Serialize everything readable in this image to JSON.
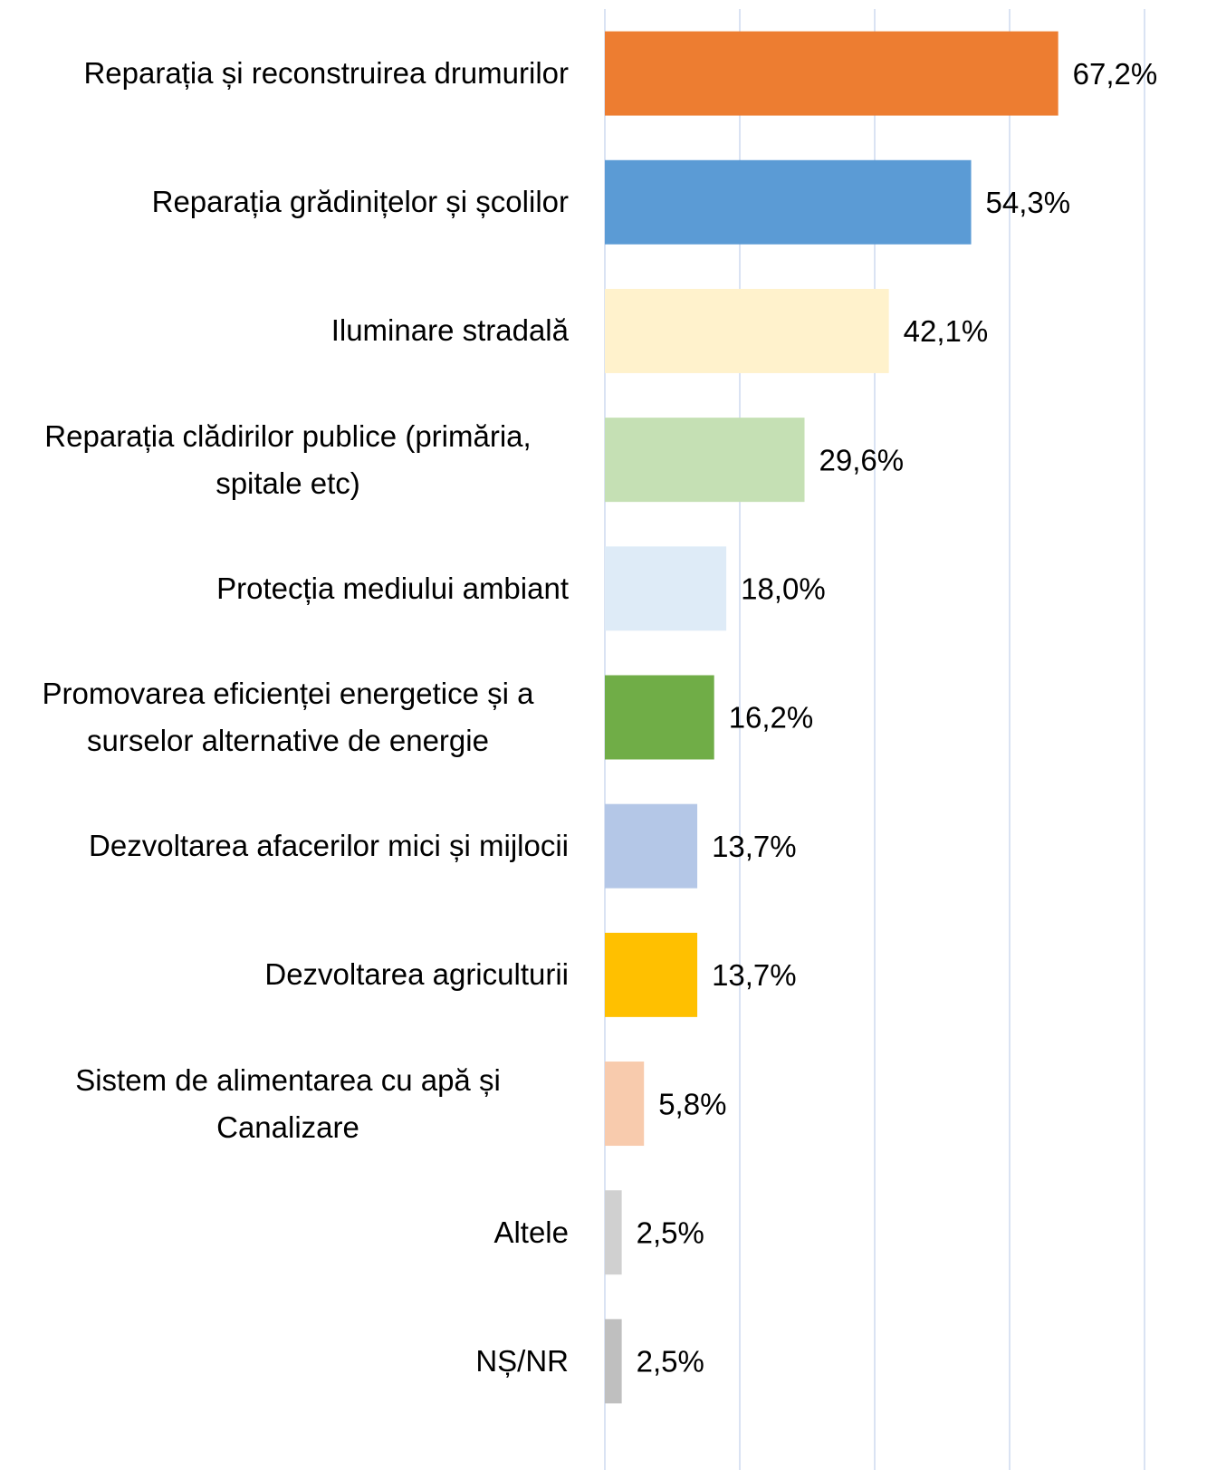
{
  "chart_data": {
    "type": "barh",
    "categories": [
      "Reparația și reconstruirea drumurilor",
      "Reparația grădinițelor și școlilor",
      "Iluminare stradală",
      "Reparația clădirilor publice (primăria, spitale etc)",
      "Protecția mediului ambiant",
      "Promovarea eficienței energetice și a surselor alternative de energie",
      "Dezvoltarea afacerilor mici și mijlocii",
      "Dezvoltarea agriculturii",
      "Sistem de alimentarea  cu apă și Canalizare",
      "Altele",
      "NȘ/NR"
    ],
    "values": [
      67.2,
      54.3,
      42.1,
      29.6,
      18.0,
      16.2,
      13.7,
      13.7,
      5.8,
      2.5,
      2.5
    ],
    "value_labels": [
      "67,2%",
      "54,3%",
      "42,1%",
      "29,6%",
      "18,0%",
      "16,2%",
      "13,7%",
      "13,7%",
      "5,8%",
      "2,5%",
      "2,5%"
    ],
    "colors": [
      "#ed7d31",
      "#5b9bd5",
      "#fff2cc",
      "#c5e0b4",
      "#deebf7",
      "#70ad47",
      "#b4c7e7",
      "#ffc000",
      "#f8cbad",
      "#d0d0d0",
      "#bfbfbf"
    ],
    "xlim": [
      0,
      80
    ],
    "xticks": [
      0,
      20,
      40,
      60,
      80
    ],
    "grid": true
  }
}
